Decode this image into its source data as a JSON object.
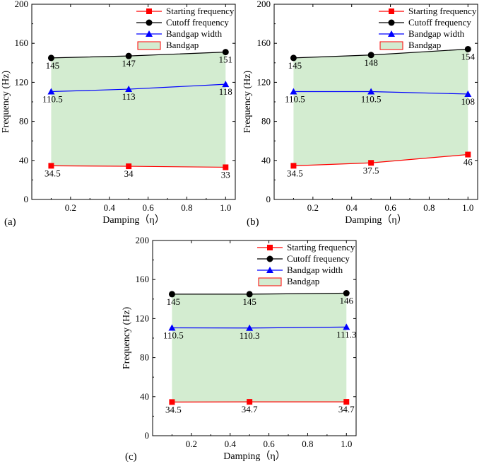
{
  "colors": {
    "starting": "#ff0000",
    "cutoff": "#000000",
    "width": "#0000ff",
    "bandgap_fill": "#d3ecd0",
    "bandgap_border": "#ff0000"
  },
  "legend": {
    "starting": "Starting frequency",
    "cutoff": "Cutoff frequency",
    "width": "Bandgap width",
    "bandgap": "Bandgap"
  },
  "chart_data": [
    {
      "type": "line",
      "panel_label": "(a)",
      "xlabel": "Damping（η）",
      "ylabel": "Frequency (Hz)",
      "xlim": [
        0,
        1.05
      ],
      "ylim": [
        0,
        200
      ],
      "xticks": [
        "0.2",
        "0.4",
        "0.6",
        "0.8",
        "1.0"
      ],
      "yticks": [
        "0",
        "40",
        "80",
        "120",
        "160",
        "200"
      ],
      "x": [
        0.1,
        0.5,
        1.0
      ],
      "series": [
        {
          "name": "Starting frequency",
          "key": "starting",
          "marker": "square",
          "values": [
            34.5,
            34,
            33
          ],
          "labels": [
            "34.5",
            "34",
            "33"
          ]
        },
        {
          "name": "Cutoff frequency",
          "key": "cutoff",
          "marker": "circle",
          "values": [
            145,
            147,
            151
          ],
          "labels": [
            "145",
            "147",
            "151"
          ]
        },
        {
          "name": "Bandgap width",
          "key": "width",
          "marker": "triangle",
          "values": [
            110.5,
            113,
            118
          ],
          "labels": [
            "110.5",
            "113",
            "118"
          ]
        }
      ],
      "legend_position": "top-right",
      "bandgap_area": true
    },
    {
      "type": "line",
      "panel_label": "(b)",
      "xlabel": "Damping（η）",
      "ylabel": "Frequency (Hz)",
      "xlim": [
        0,
        1.05
      ],
      "ylim": [
        0,
        200
      ],
      "xticks": [
        "0.2",
        "0.4",
        "0.6",
        "0.8",
        "1.0"
      ],
      "yticks": [
        "0",
        "40",
        "80",
        "120",
        "160",
        "200"
      ],
      "x": [
        0.1,
        0.5,
        1.0
      ],
      "series": [
        {
          "name": "Starting frequency",
          "key": "starting",
          "marker": "square",
          "values": [
            34.5,
            37.5,
            46
          ],
          "labels": [
            "34.5",
            "37.5",
            "46"
          ]
        },
        {
          "name": "Cutoff frequency",
          "key": "cutoff",
          "marker": "circle",
          "values": [
            145,
            148,
            154
          ],
          "labels": [
            "145",
            "148",
            "154"
          ]
        },
        {
          "name": "Bandgap width",
          "key": "width",
          "marker": "triangle",
          "values": [
            110.5,
            110.5,
            108
          ],
          "labels": [
            "110.5",
            "110.5",
            "108"
          ]
        }
      ],
      "legend_position": "top-right",
      "bandgap_area": true
    },
    {
      "type": "line",
      "panel_label": "(c)",
      "xlabel": "Damping（η）",
      "ylabel": "Frequency (Hz)",
      "xlim": [
        0,
        1.05
      ],
      "ylim": [
        0,
        200
      ],
      "xticks": [
        "0.2",
        "0.4",
        "0.6",
        "0.8",
        "1.0"
      ],
      "yticks": [
        "0",
        "40",
        "80",
        "120",
        "160",
        "200"
      ],
      "x": [
        0.1,
        0.5,
        1.0
      ],
      "series": [
        {
          "name": "Starting frequency",
          "key": "starting",
          "marker": "square",
          "values": [
            34.5,
            34.7,
            34.7
          ],
          "labels": [
            "34.5",
            "34.7",
            "34.7"
          ]
        },
        {
          "name": "Cutoff frequency",
          "key": "cutoff",
          "marker": "circle",
          "values": [
            145,
            145,
            146
          ],
          "labels": [
            "145",
            "145",
            "146"
          ]
        },
        {
          "name": "Bandgap width",
          "key": "width",
          "marker": "triangle",
          "values": [
            110.5,
            110.3,
            111.3
          ],
          "labels": [
            "110.5",
            "110.3",
            "111.3"
          ]
        }
      ],
      "legend_position": "top-right",
      "bandgap_area": true
    }
  ]
}
